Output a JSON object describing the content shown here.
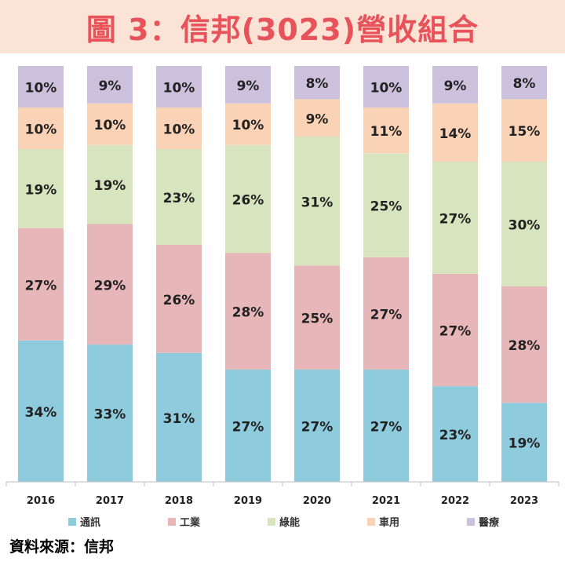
{
  "title": "圖 3：信邦(3023)營收組合",
  "source": "資料來源：信邦",
  "chart_data": {
    "type": "bar",
    "stacked": true,
    "categories": [
      "2016",
      "2017",
      "2018",
      "2019",
      "2020",
      "2021",
      "2022",
      "2023"
    ],
    "ylim": [
      0,
      100
    ],
    "grid": false,
    "legend": "bottom",
    "series": [
      {
        "name": "通訊",
        "color": "#8ecbdc",
        "values": [
          34,
          33,
          31,
          27,
          27,
          27,
          23,
          19
        ]
      },
      {
        "name": "工業",
        "color": "#e7b6b8",
        "values": [
          27,
          29,
          26,
          28,
          25,
          27,
          27,
          28
        ]
      },
      {
        "name": "綠能",
        "color": "#d8e4bd",
        "values": [
          19,
          19,
          23,
          26,
          31,
          25,
          27,
          30
        ]
      },
      {
        "name": "車用",
        "color": "#fad3b6",
        "values": [
          10,
          10,
          10,
          10,
          9,
          11,
          14,
          15
        ]
      },
      {
        "name": "醫療",
        "color": "#ccc1dc",
        "values": [
          10,
          9,
          10,
          9,
          8,
          10,
          9,
          8
        ]
      }
    ]
  }
}
